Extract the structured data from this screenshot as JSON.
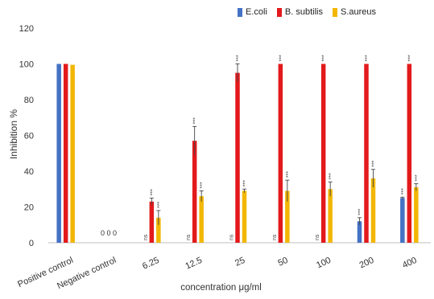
{
  "chart_data": {
    "type": "bar",
    "title": "",
    "xlabel": "concentration μg/ml",
    "ylabel": "Inhibition %",
    "ylim": [
      0,
      120
    ],
    "yticks": [
      0,
      20,
      40,
      60,
      80,
      100,
      120
    ],
    "categories": [
      "Positive control",
      "Negative control",
      "6.25",
      "12.5",
      "25",
      "50",
      "100",
      "200",
      "400"
    ],
    "legend_position": "top-right",
    "grid": false,
    "series": [
      {
        "name": "E.coli",
        "color": "#4472C4",
        "values": [
          100,
          0,
          0,
          0,
          0,
          0,
          0,
          12,
          25
        ],
        "errors": [
          0,
          0,
          0,
          0,
          0,
          0,
          0,
          2,
          0.5
        ],
        "sig": [
          "",
          "",
          "ns",
          "ns",
          "ns",
          "ns",
          "ns",
          "***",
          "***"
        ]
      },
      {
        "name": "B. subtilis",
        "color": "#E31A1C",
        "values": [
          100,
          0,
          23,
          57,
          95,
          100,
          100,
          100,
          100
        ],
        "errors": [
          0,
          0,
          2,
          8,
          5,
          0,
          0,
          0,
          0
        ],
        "sig": [
          "",
          "",
          "***",
          "***",
          "***",
          "***",
          "***",
          "***",
          "***"
        ]
      },
      {
        "name": "S.aureus",
        "color": "#F2B705",
        "values": [
          99.5,
          0,
          14,
          26,
          29,
          29,
          30,
          36,
          31
        ],
        "errors": [
          0,
          0,
          4,
          3,
          1,
          6,
          4,
          5,
          2
        ],
        "sig": [
          "",
          "",
          "***",
          "***",
          "***",
          "***",
          "***",
          "***",
          "***"
        ]
      }
    ],
    "annotations": [
      {
        "category": "Negative control",
        "text": "0 0 0"
      }
    ]
  }
}
